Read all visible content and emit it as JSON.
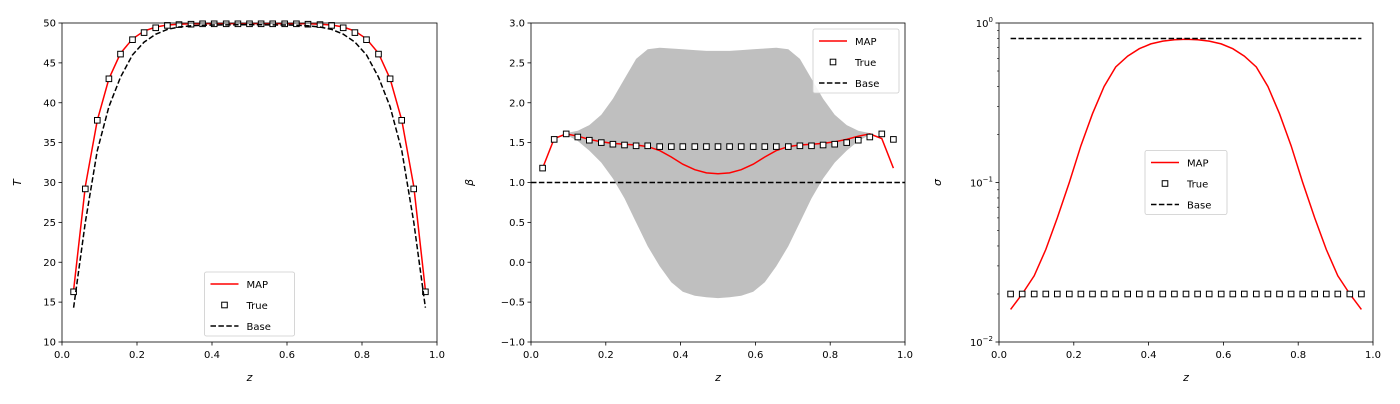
{
  "chart_data": [
    {
      "type": "line",
      "xlabel": "z",
      "ylabel": "T",
      "xlim": [
        0.0,
        1.0
      ],
      "ylim": [
        10,
        50
      ],
      "xticks": [
        0.0,
        0.2,
        0.4,
        0.6,
        0.8,
        1.0
      ],
      "xtick_labels": [
        "0.0",
        "0.2",
        "0.4",
        "0.6",
        "0.8",
        "1.0"
      ],
      "yticks": [
        10,
        15,
        20,
        25,
        30,
        35,
        40,
        45,
        50
      ],
      "ytick_labels": [
        "10",
        "15",
        "20",
        "25",
        "30",
        "35",
        "40",
        "45",
        "50"
      ],
      "legend_position": "lower-center",
      "grid": false,
      "series": [
        {
          "name": "MAP",
          "style": "line",
          "color": "#ff0000",
          "x": [
            0.031,
            0.062,
            0.094,
            0.125,
            0.156,
            0.188,
            0.219,
            0.25,
            0.281,
            0.312,
            0.344,
            0.375,
            0.406,
            0.438,
            0.469,
            0.5,
            0.531,
            0.562,
            0.594,
            0.625,
            0.656,
            0.688,
            0.719,
            0.75,
            0.781,
            0.812,
            0.844,
            0.875,
            0.906,
            0.938,
            0.969
          ],
          "y": [
            16.5,
            29.5,
            37.8,
            43.0,
            46.2,
            48.0,
            49.0,
            49.5,
            49.75,
            49.85,
            49.9,
            49.92,
            49.93,
            49.93,
            49.93,
            49.93,
            49.93,
            49.93,
            49.93,
            49.92,
            49.9,
            49.85,
            49.75,
            49.5,
            49.0,
            48.0,
            46.2,
            43.0,
            37.8,
            29.5,
            16.5
          ]
        },
        {
          "name": "True",
          "style": "markers",
          "color": "#000000",
          "x": [
            0.031,
            0.062,
            0.094,
            0.125,
            0.156,
            0.188,
            0.219,
            0.25,
            0.281,
            0.312,
            0.344,
            0.375,
            0.406,
            0.438,
            0.469,
            0.5,
            0.531,
            0.562,
            0.594,
            0.625,
            0.656,
            0.688,
            0.719,
            0.75,
            0.781,
            0.812,
            0.844,
            0.875,
            0.906,
            0.938,
            0.969
          ],
          "y": [
            16.3,
            29.2,
            37.8,
            43.0,
            46.1,
            47.9,
            48.8,
            49.4,
            49.7,
            49.8,
            49.85,
            49.9,
            49.9,
            49.9,
            49.9,
            49.9,
            49.9,
            49.9,
            49.9,
            49.9,
            49.85,
            49.8,
            49.7,
            49.4,
            48.8,
            47.9,
            46.1,
            43.0,
            37.8,
            29.2,
            16.3
          ]
        },
        {
          "name": " Base",
          "style": "dashed",
          "color": "#000000",
          "x": [
            0.031,
            0.062,
            0.094,
            0.125,
            0.156,
            0.188,
            0.219,
            0.25,
            0.281,
            0.312,
            0.344,
            0.375,
            0.406,
            0.438,
            0.469,
            0.5,
            0.531,
            0.562,
            0.594,
            0.625,
            0.656,
            0.688,
            0.719,
            0.75,
            0.781,
            0.812,
            0.844,
            0.875,
            0.906,
            0.938,
            0.969
          ],
          "y": [
            14.3,
            25.0,
            34.0,
            39.5,
            43.2,
            46.0,
            47.6,
            48.6,
            49.2,
            49.5,
            49.65,
            49.72,
            49.75,
            49.76,
            49.77,
            49.77,
            49.77,
            49.76,
            49.75,
            49.72,
            49.65,
            49.5,
            49.2,
            48.6,
            47.6,
            46.0,
            43.2,
            39.5,
            34.0,
            25.0,
            14.3
          ]
        }
      ]
    },
    {
      "type": "line",
      "xlabel": "z",
      "ylabel": "β",
      "xlim": [
        0.0,
        1.0
      ],
      "ylim": [
        -1.0,
        3.0
      ],
      "xticks": [
        0.0,
        0.2,
        0.4,
        0.6,
        0.8,
        1.0
      ],
      "xtick_labels": [
        "0.0",
        "0.2",
        "0.4",
        "0.6",
        "0.8",
        "1.0"
      ],
      "yticks": [
        -1.0,
        -0.5,
        0.0,
        0.5,
        1.0,
        1.5,
        2.0,
        2.5,
        3.0
      ],
      "ytick_labels": [
        "−1.0",
        "−0.5",
        "0.0",
        "0.5",
        "1.0",
        "1.5",
        "2.0",
        "2.5",
        "3.0"
      ],
      "legend_position": "top-right",
      "grid": false,
      "band": {
        "color": "#bfbfbf",
        "x": [
          0.031,
          0.062,
          0.094,
          0.125,
          0.156,
          0.188,
          0.219,
          0.25,
          0.281,
          0.312,
          0.344,
          0.375,
          0.406,
          0.438,
          0.469,
          0.5,
          0.531,
          0.562,
          0.594,
          0.625,
          0.656,
          0.688,
          0.719,
          0.75,
          0.781,
          0.812,
          0.844,
          0.875,
          0.906,
          0.938,
          0.969
        ],
        "lower": [
          1.18,
          1.54,
          1.6,
          1.52,
          1.4,
          1.25,
          1.05,
          0.8,
          0.5,
          0.2,
          -0.05,
          -0.25,
          -0.37,
          -0.42,
          -0.44,
          -0.45,
          -0.44,
          -0.42,
          -0.37,
          -0.25,
          -0.05,
          0.2,
          0.5,
          0.8,
          1.05,
          1.25,
          1.4,
          1.52,
          1.6,
          1.54,
          1.18
        ],
        "upper": [
          1.18,
          1.56,
          1.62,
          1.65,
          1.72,
          1.85,
          2.05,
          2.3,
          2.55,
          2.67,
          2.69,
          2.68,
          2.67,
          2.66,
          2.65,
          2.65,
          2.65,
          2.66,
          2.67,
          2.68,
          2.69,
          2.67,
          2.55,
          2.3,
          2.05,
          1.85,
          1.72,
          1.65,
          1.62,
          1.56,
          1.18
        ]
      },
      "series": [
        {
          "name": "MAP",
          "style": "line",
          "color": "#ff0000",
          "x": [
            0.031,
            0.062,
            0.094,
            0.125,
            0.156,
            0.188,
            0.219,
            0.25,
            0.281,
            0.312,
            0.344,
            0.375,
            0.406,
            0.438,
            0.469,
            0.5,
            0.531,
            0.562,
            0.594,
            0.625,
            0.656,
            0.688,
            0.719,
            0.75,
            0.781,
            0.812,
            0.844,
            0.875,
            0.906,
            0.938,
            0.969
          ],
          "y": [
            1.18,
            1.55,
            1.61,
            1.58,
            1.54,
            1.51,
            1.49,
            1.48,
            1.47,
            1.45,
            1.4,
            1.32,
            1.23,
            1.16,
            1.12,
            1.11,
            1.12,
            1.16,
            1.23,
            1.32,
            1.4,
            1.45,
            1.47,
            1.48,
            1.49,
            1.51,
            1.54,
            1.58,
            1.61,
            1.55,
            1.18
          ]
        },
        {
          "name": "True",
          "style": "markers",
          "color": "#000000",
          "x": [
            0.031,
            0.062,
            0.094,
            0.125,
            0.156,
            0.188,
            0.219,
            0.25,
            0.281,
            0.312,
            0.344,
            0.375,
            0.406,
            0.438,
            0.469,
            0.5,
            0.531,
            0.562,
            0.594,
            0.625,
            0.656,
            0.688,
            0.719,
            0.75,
            0.781,
            0.812,
            0.844,
            0.875,
            0.906,
            0.938,
            0.969
          ],
          "y": [
            1.18,
            1.54,
            1.61,
            1.57,
            1.53,
            1.5,
            1.48,
            1.47,
            1.46,
            1.46,
            1.45,
            1.45,
            1.45,
            1.45,
            1.45,
            1.45,
            1.45,
            1.45,
            1.45,
            1.45,
            1.45,
            1.45,
            1.46,
            1.46,
            1.47,
            1.48,
            1.5,
            1.53,
            1.57,
            1.61,
            1.54
          ]
        },
        {
          "name": "Base",
          "style": "dashed",
          "color": "#000000",
          "x": [
            0.0,
            1.0
          ],
          "y": [
            1.0,
            1.0
          ]
        }
      ]
    },
    {
      "type": "line",
      "xlabel": "z",
      "ylabel": "σ",
      "xlim": [
        0.0,
        1.0
      ],
      "ylim": [
        0.01,
        1.0
      ],
      "yscale": "log",
      "xticks": [
        0.0,
        0.2,
        0.4,
        0.6,
        0.8,
        1.0
      ],
      "xtick_labels": [
        "0.0",
        "0.2",
        "0.4",
        "0.6",
        "0.8",
        "1.0"
      ],
      "yticks": [
        0.01,
        0.1,
        1.0
      ],
      "ytick_labels": [
        {
          "base": "10",
          "exp": "−2"
        },
        {
          "base": "10",
          "exp": "−1"
        },
        {
          "base": "10",
          "exp": "0"
        }
      ],
      "legend_position": "center",
      "grid": false,
      "series": [
        {
          "name": "MAP",
          "style": "line",
          "color": "#ff0000",
          "x": [
            0.031,
            0.062,
            0.094,
            0.125,
            0.156,
            0.188,
            0.219,
            0.25,
            0.281,
            0.312,
            0.344,
            0.375,
            0.406,
            0.438,
            0.469,
            0.5,
            0.531,
            0.562,
            0.594,
            0.625,
            0.656,
            0.688,
            0.719,
            0.75,
            0.781,
            0.812,
            0.844,
            0.875,
            0.906,
            0.938,
            0.969
          ],
          "y": [
            0.016,
            0.02,
            0.026,
            0.038,
            0.06,
            0.1,
            0.17,
            0.27,
            0.4,
            0.53,
            0.62,
            0.69,
            0.74,
            0.77,
            0.785,
            0.79,
            0.785,
            0.77,
            0.74,
            0.69,
            0.62,
            0.53,
            0.4,
            0.27,
            0.17,
            0.1,
            0.06,
            0.038,
            0.026,
            0.02,
            0.016
          ]
        },
        {
          "name": "True",
          "style": "markers",
          "color": "#000000",
          "x": [
            0.031,
            0.062,
            0.094,
            0.125,
            0.156,
            0.188,
            0.219,
            0.25,
            0.281,
            0.312,
            0.344,
            0.375,
            0.406,
            0.438,
            0.469,
            0.5,
            0.531,
            0.562,
            0.594,
            0.625,
            0.656,
            0.688,
            0.719,
            0.75,
            0.781,
            0.812,
            0.844,
            0.875,
            0.906,
            0.938,
            0.969
          ],
          "y": [
            0.02,
            0.02,
            0.02,
            0.02,
            0.02,
            0.02,
            0.02,
            0.02,
            0.02,
            0.02,
            0.02,
            0.02,
            0.02,
            0.02,
            0.02,
            0.02,
            0.02,
            0.02,
            0.02,
            0.02,
            0.02,
            0.02,
            0.02,
            0.02,
            0.02,
            0.02,
            0.02,
            0.02,
            0.02,
            0.02,
            0.02
          ]
        },
        {
          "name": "Base",
          "style": "dashed",
          "color": "#000000",
          "x": [
            0.031,
            0.969
          ],
          "y": [
            0.8,
            0.8
          ]
        }
      ]
    }
  ]
}
